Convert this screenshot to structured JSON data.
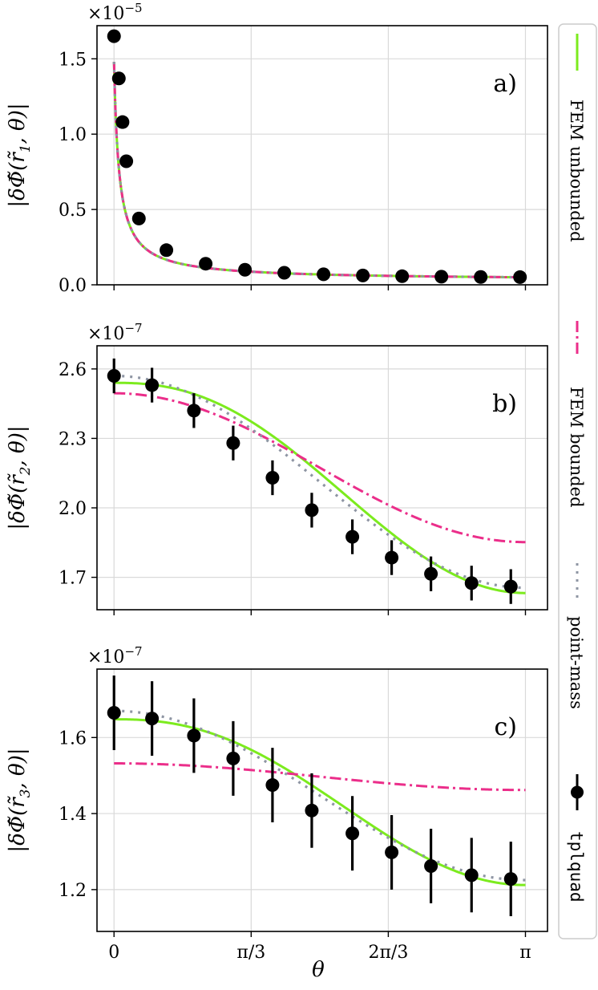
{
  "colors": {
    "fem_unbounded": "#7CEB1E",
    "fem_bounded": "#EB2E8A",
    "point_mass": "#8E95A3",
    "tplquad": "#000000",
    "grid": "#d9d9d9"
  },
  "figure": {
    "xlabel": "θ",
    "x_ticks": [
      0,
      1.0472,
      2.0944,
      3.1416
    ],
    "x_tick_labels": [
      "0",
      "π/3",
      "2π/3",
      "π"
    ]
  },
  "legend": {
    "placement": "right, vertical",
    "entries": [
      {
        "label": "FEM unbounded",
        "style": "solid",
        "color": "#7CEB1E"
      },
      {
        "label": "FEM bounded",
        "style": "dashdot",
        "color": "#EB2E8A"
      },
      {
        "label": "point-mass",
        "style": "dotted",
        "color": "#8E95A3"
      },
      {
        "label": "tplquad",
        "style": "marker",
        "color": "#000000"
      }
    ]
  },
  "chart_data": [
    {
      "type": "line",
      "panel_label": "a)",
      "ylabel_prefix": "|δΦ̃(r̃",
      "ylabel_sub": "1",
      "ylabel_suffix": ", θ)|",
      "scale_label": "×10",
      "scale_exp": "−5",
      "xlim": [
        -0.13,
        3.31
      ],
      "ylim": [
        0.0,
        1.72
      ],
      "yticks": [
        0.0,
        0.5,
        1.0,
        1.5
      ],
      "ytick_labels": [
        "0.0",
        "0.5",
        "1.0",
        "1.5"
      ],
      "grid": true,
      "series": [
        {
          "name": "FEM unbounded",
          "curve": "decay",
          "params": {
            "A": 0.0625,
            "k": 0.0365,
            "p": 0.95,
            "B": 0.029
          }
        },
        {
          "name": "FEM bounded",
          "curve": "decay",
          "params": {
            "A": 0.0625,
            "k": 0.0365,
            "p": 0.95,
            "B": 0.029
          }
        },
        {
          "name": "point-mass",
          "curve": "decay",
          "params": {
            "A": 0.0625,
            "k": 0.0365,
            "p": 0.95,
            "B": 0.029
          }
        }
      ],
      "points": {
        "x": [
          0.0,
          0.037,
          0.065,
          0.094,
          0.19,
          0.4,
          0.7,
          1.0,
          1.3,
          1.6,
          1.9,
          2.2,
          2.5,
          2.8,
          3.1
        ],
        "y": [
          1.65,
          1.37,
          1.08,
          0.82,
          0.44,
          0.23,
          0.14,
          0.1,
          0.08,
          0.07,
          0.062,
          0.057,
          0.054,
          0.052,
          0.051
        ],
        "err": []
      }
    },
    {
      "type": "line",
      "panel_label": "b)",
      "ylabel_prefix": "|δΦ̃(r̃",
      "ylabel_sub": "2",
      "ylabel_suffix": ", θ)|",
      "scale_label": "×10",
      "scale_exp": "−7",
      "xlim": [
        -0.13,
        3.31
      ],
      "ylim": [
        1.56,
        2.7
      ],
      "yticks": [
        1.7,
        2.0,
        2.3,
        2.6
      ],
      "ytick_labels": [
        "1.7",
        "2.0",
        "2.3",
        "2.6"
      ],
      "grid": true,
      "series": [
        {
          "name": "FEM unbounded",
          "curve": "cos",
          "params": {
            "a": 2.54,
            "b": 1.632,
            "p": 1.22
          }
        },
        {
          "name": "FEM bounded",
          "curve": "cos",
          "params": {
            "a": 2.495,
            "b": 1.852,
            "p": 1.0
          }
        },
        {
          "name": "point-mass",
          "curve": "cos",
          "params": {
            "a": 2.57,
            "b": 1.655,
            "p": 1.0
          }
        }
      ],
      "points": {
        "x": [
          0.0,
          0.29,
          0.61,
          0.91,
          1.21,
          1.51,
          1.82,
          2.12,
          2.42,
          2.73,
          3.03
        ],
        "y": [
          2.57,
          2.53,
          2.42,
          2.28,
          2.13,
          1.99,
          1.875,
          1.785,
          1.715,
          1.675,
          1.66
        ],
        "err": [
          0.075,
          0.075,
          0.075,
          0.075,
          0.075,
          0.075,
          0.075,
          0.075,
          0.075,
          0.075,
          0.075
        ]
      }
    },
    {
      "type": "line",
      "panel_label": "c)",
      "ylabel_prefix": "|δΦ̃(r̃",
      "ylabel_sub": "3",
      "ylabel_suffix": ", θ)|",
      "scale_label": "×10",
      "scale_exp": "−7",
      "xlim": [
        -0.13,
        3.31
      ],
      "ylim": [
        1.09,
        1.78
      ],
      "yticks": [
        1.2,
        1.4,
        1.6
      ],
      "ytick_labels": [
        "1.2",
        "1.4",
        "1.6"
      ],
      "grid": true,
      "series": [
        {
          "name": "FEM unbounded",
          "curve": "cos",
          "params": {
            "a": 1.648,
            "b": 1.212,
            "p": 1.22
          }
        },
        {
          "name": "FEM bounded",
          "curve": "cos",
          "params": {
            "a": 1.532,
            "b": 1.462,
            "p": 1.0
          }
        },
        {
          "name": "point-mass",
          "curve": "cos",
          "params": {
            "a": 1.67,
            "b": 1.225,
            "p": 1.0
          }
        }
      ],
      "points": {
        "x": [
          0.0,
          0.29,
          0.61,
          0.91,
          1.21,
          1.51,
          1.82,
          2.12,
          2.42,
          2.73,
          3.03
        ],
        "y": [
          1.665,
          1.65,
          1.605,
          1.545,
          1.475,
          1.408,
          1.348,
          1.298,
          1.262,
          1.238,
          1.228
        ],
        "err": [
          0.098,
          0.098,
          0.098,
          0.098,
          0.098,
          0.098,
          0.098,
          0.098,
          0.098,
          0.098,
          0.098
        ]
      }
    }
  ]
}
